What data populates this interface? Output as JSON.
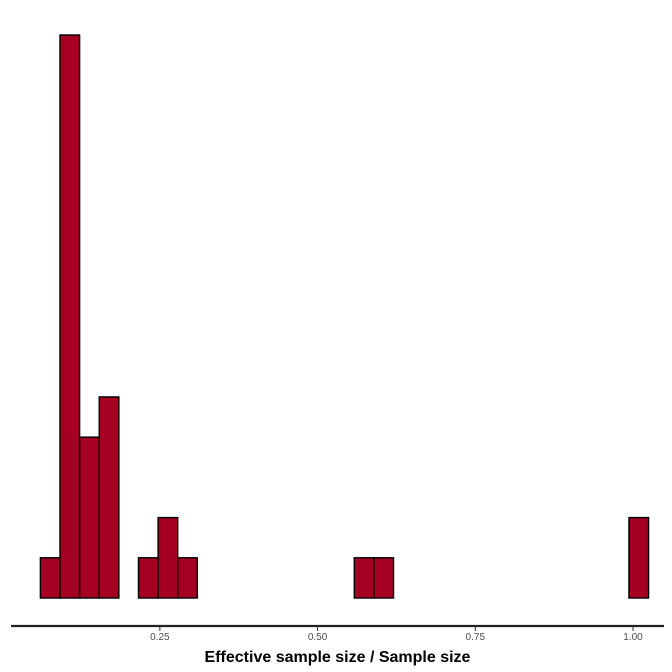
{
  "chart_data": {
    "type": "bar",
    "subtype": "histogram",
    "title": "",
    "xlabel": "Effective sample size / Sample size",
    "ylabel": "",
    "xlim": [
      0.06,
      1.0
    ],
    "ylim": [
      0,
      14
    ],
    "xticks": [
      0.25,
      0.5,
      0.75,
      1.0
    ],
    "xtick_labels": [
      "0.25",
      "0.50",
      "0.75",
      "1.00"
    ],
    "show_y_axis": false,
    "grid": false,
    "bin_width": 0.0311,
    "first_bin_start": 0.0606,
    "counts": [
      1,
      14,
      4,
      5,
      0,
      1,
      2,
      1,
      0,
      0,
      0,
      0,
      0,
      0,
      0,
      0,
      1,
      1,
      0,
      0,
      0,
      0,
      0,
      0,
      0,
      0,
      0,
      0,
      0,
      0,
      2
    ],
    "bar_color": "#a50021",
    "bar_edge_color": "#000000"
  }
}
